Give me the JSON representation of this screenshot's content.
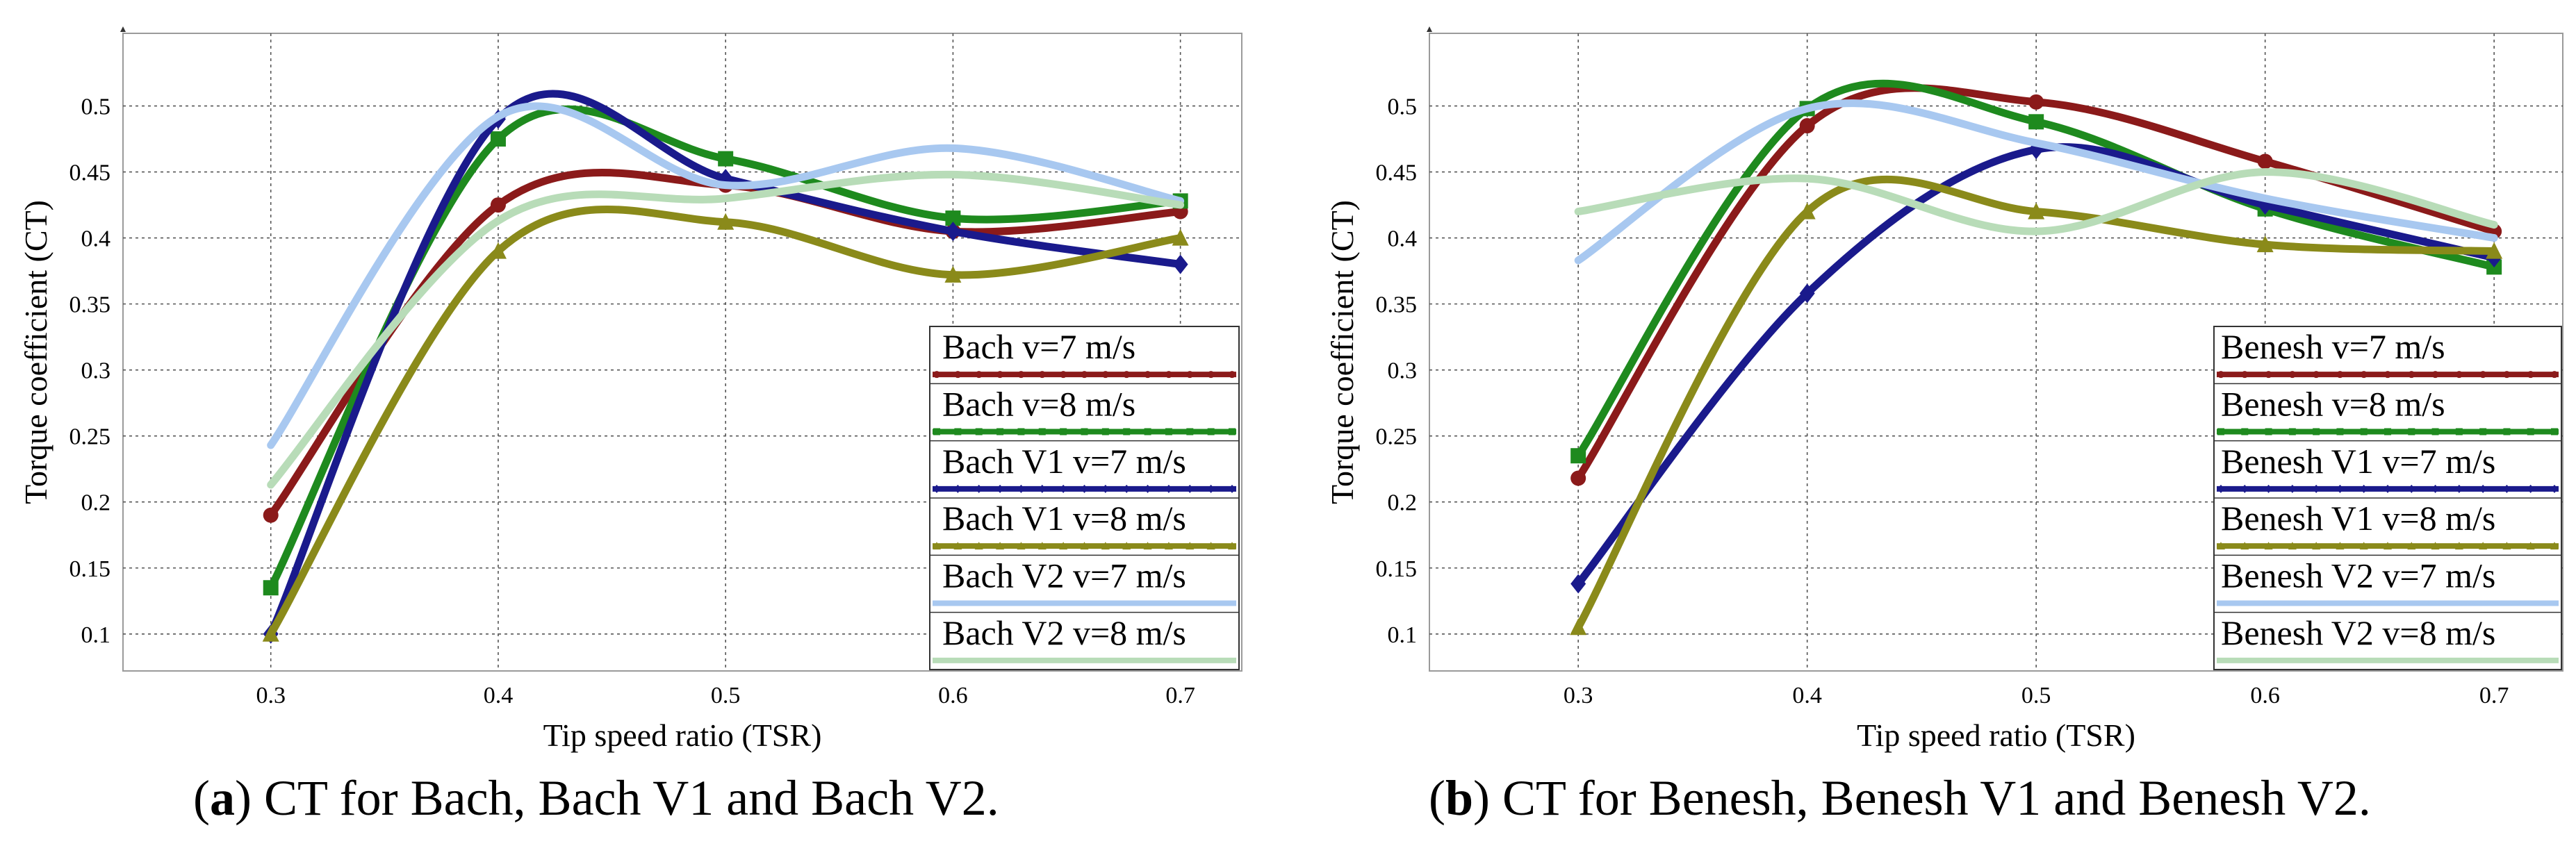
{
  "chart_data": [
    {
      "type": "line",
      "id": "a",
      "title": "",
      "xlabel": "Tip speed ratio (TSR)",
      "ylabel": "Torque coefficient (CT)",
      "x": [
        0.3,
        0.4,
        0.5,
        0.6,
        0.7
      ],
      "xticks": [
        0.3,
        0.4,
        0.5,
        0.6,
        0.7
      ],
      "xtick_labels": [
        "0.3",
        "0.4",
        "0.5",
        "0.6",
        "0.7"
      ],
      "yticks": [
        0.1,
        0.15,
        0.2,
        0.25,
        0.3,
        0.35,
        0.4,
        0.45,
        0.5
      ],
      "ytick_labels": [
        "0.1",
        "0.15",
        "0.2",
        "0.25",
        "0.3",
        "0.35",
        "0.4",
        "0.45",
        "0.5"
      ],
      "xlim": [
        0.235,
        0.727
      ],
      "ylim": [
        0.072,
        0.555
      ],
      "grid": true,
      "legend_position": "bottom-right",
      "series": [
        {
          "name": "Bach v=7 m/s",
          "color": "#8b1a1a",
          "marker": "circle",
          "values": [
            0.19,
            0.425,
            0.44,
            0.405,
            0.42
          ]
        },
        {
          "name": "Bach v=8 m/s",
          "color": "#1e8a1e",
          "marker": "square",
          "values": [
            0.135,
            0.475,
            0.46,
            0.415,
            0.428
          ]
        },
        {
          "name": "Bach V1 v=7 m/s",
          "color": "#1a1a8c",
          "marker": "diamond",
          "values": [
            0.1,
            0.49,
            0.445,
            0.405,
            0.38
          ]
        },
        {
          "name": "Bach V1 v=8 m/s",
          "color": "#8a8a1a",
          "marker": "triangle",
          "values": [
            0.1,
            0.39,
            0.412,
            0.372,
            0.4
          ]
        },
        {
          "name": "Bach V2 v=7 m/s",
          "color": "#a8c8f0",
          "marker": "none",
          "values": [
            0.243,
            0.492,
            0.44,
            0.468,
            0.428
          ]
        },
        {
          "name": "Bach V2 v=8 m/s",
          "color": "#b8dcb8",
          "marker": "none",
          "values": [
            0.213,
            0.413,
            0.43,
            0.448,
            0.425
          ]
        }
      ],
      "caption_label": "a",
      "caption_text": ") CT for Bach, Bach V1 and Bach V2."
    },
    {
      "type": "line",
      "id": "b",
      "title": "",
      "xlabel": "Tip speed ratio (TSR)",
      "ylabel": "Torque coefficient (CT)",
      "x": [
        0.3,
        0.4,
        0.5,
        0.6,
        0.7
      ],
      "xticks": [
        0.3,
        0.4,
        0.5,
        0.6,
        0.7
      ],
      "xtick_labels": [
        "0.3",
        "0.4",
        "0.5",
        "0.6",
        "0.7"
      ],
      "yticks": [
        0.1,
        0.15,
        0.2,
        0.25,
        0.3,
        0.35,
        0.4,
        0.45,
        0.5
      ],
      "ytick_labels": [
        "0.1",
        "0.15",
        "0.2",
        "0.25",
        "0.3",
        "0.35",
        "0.4",
        "0.45",
        "0.5"
      ],
      "xlim": [
        0.235,
        0.73
      ],
      "ylim": [
        0.072,
        0.555
      ],
      "grid": true,
      "legend_position": "bottom-right",
      "series": [
        {
          "name": "Benesh v=7 m/s",
          "color": "#8b1a1a",
          "marker": "circle",
          "values": [
            0.218,
            0.485,
            0.503,
            0.458,
            0.405
          ]
        },
        {
          "name": "Benesh v=8 m/s",
          "color": "#1e8a1e",
          "marker": "square",
          "values": [
            0.235,
            0.498,
            0.488,
            0.422,
            0.378
          ]
        },
        {
          "name": "Benesh V1 v=7 m/s",
          "color": "#1a1a8c",
          "marker": "diamond",
          "values": [
            0.138,
            0.358,
            0.467,
            0.425,
            0.385
          ]
        },
        {
          "name": "Benesh V1 v=8 m/s",
          "color": "#8a8a1a",
          "marker": "triangle",
          "values": [
            0.105,
            0.42,
            0.42,
            0.395,
            0.39
          ]
        },
        {
          "name": "Benesh V2 v=7 m/s",
          "color": "#a8c8f0",
          "marker": "none",
          "values": [
            0.383,
            0.498,
            0.472,
            0.43,
            0.4
          ]
        },
        {
          "name": "Benesh V2 v=8 m/s",
          "color": "#b8dcb8",
          "marker": "none",
          "values": [
            0.42,
            0.445,
            0.405,
            0.45,
            0.41
          ]
        }
      ],
      "caption_label": "b",
      "caption_text": ") CT for Benesh, Benesh V1 and Benesh V2."
    }
  ]
}
